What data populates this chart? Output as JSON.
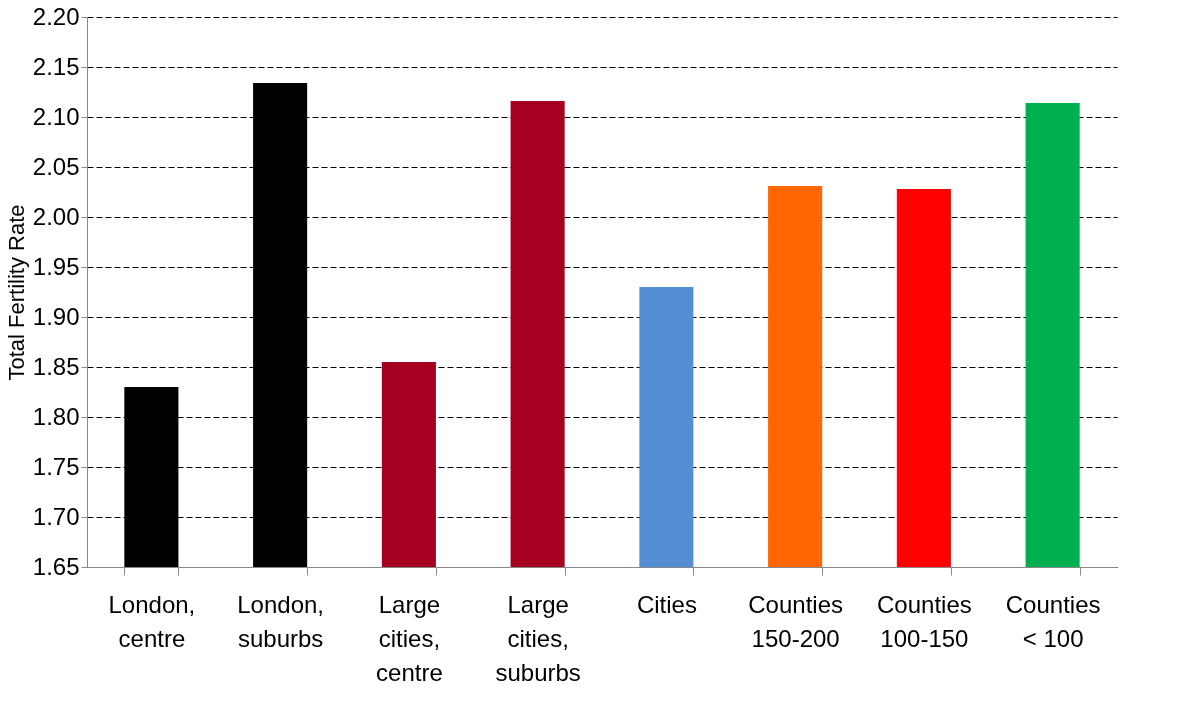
{
  "chart_data": {
    "type": "bar",
    "ylabel": "Total Fertility Rate",
    "categories": [
      "London, centre",
      "London, suburbs",
      "Large cities, centre",
      "Large cities, suburbs",
      "Cities",
      "Counties 150-200",
      "Counties 100-150",
      "Counties < 100"
    ],
    "values": [
      1.83,
      2.134,
      1.855,
      2.116,
      1.93,
      2.031,
      2.028,
      2.114
    ],
    "colors": [
      "#000000",
      "#000000",
      "#a50021",
      "#a50021",
      "#558ed5",
      "#ff6600",
      "#ff0000",
      "#00b050"
    ],
    "ylim": [
      1.65,
      2.2
    ],
    "yticks": [
      1.65,
      {
        "value": 1.7,
        "label": "1.70"
      },
      1.75,
      {
        "value": 1.8,
        "label": "1.80"
      },
      1.85,
      {
        "value": 1.9,
        "label": "1.90"
      },
      1.95,
      {
        "value": 2.0,
        "label": "2.00"
      },
      2.05,
      {
        "value": 2.1,
        "label": "2.10"
      },
      2.15,
      {
        "value": 2.2,
        "label": "2.20"
      }
    ],
    "grid": "y"
  }
}
